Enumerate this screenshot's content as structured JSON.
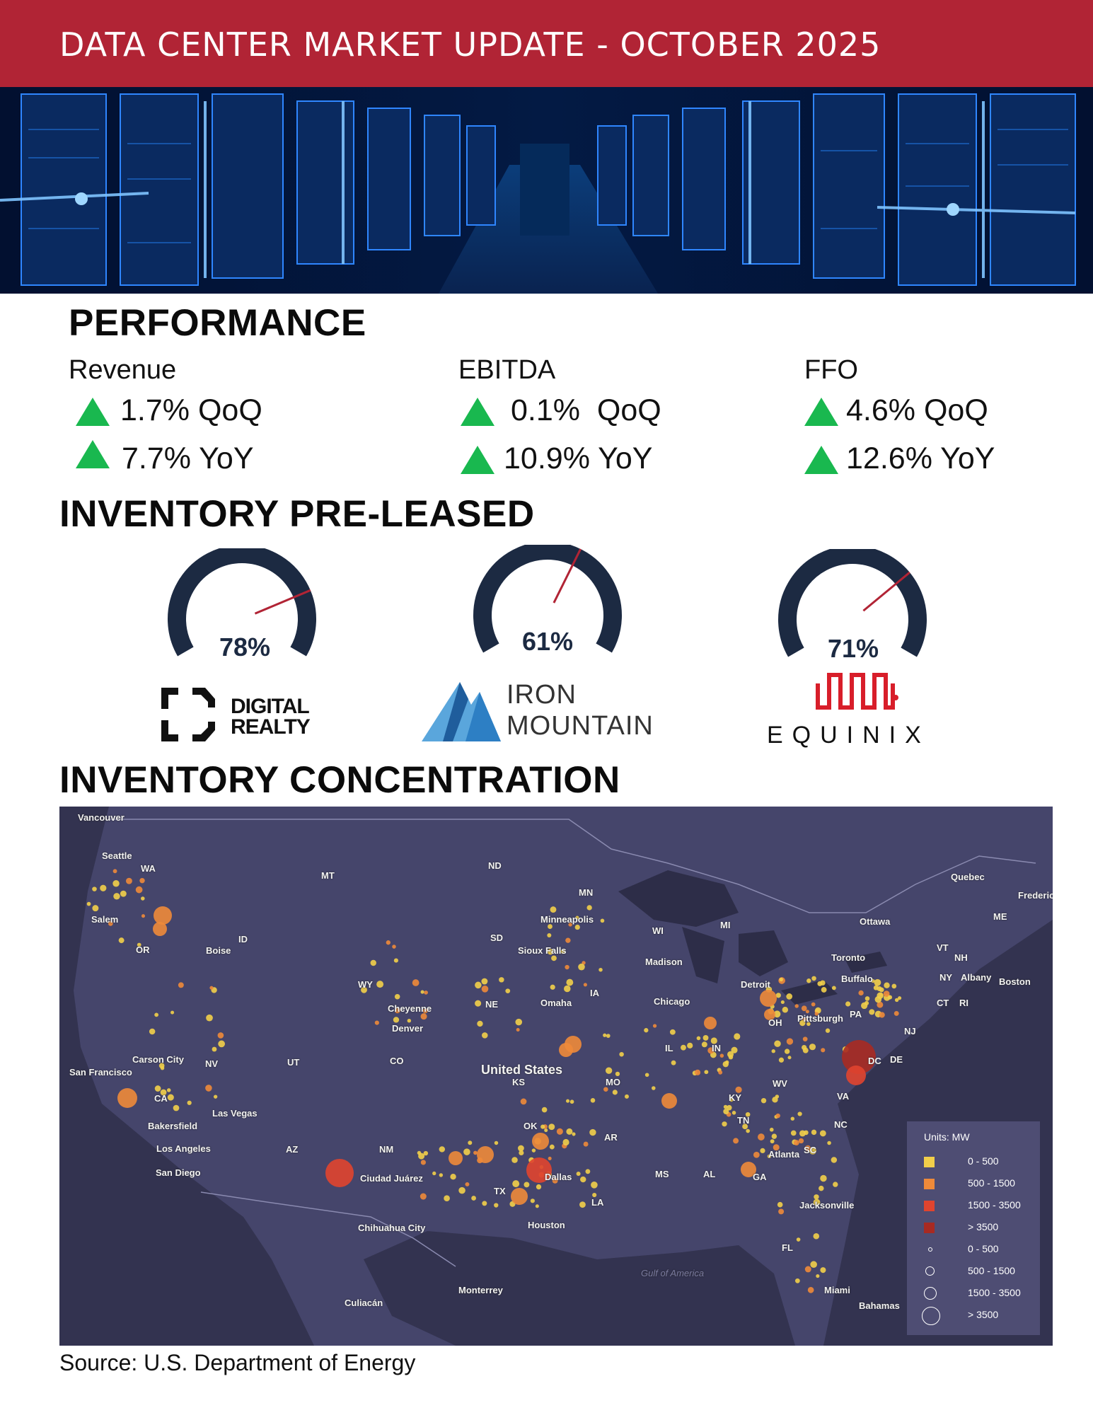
{
  "header": {
    "title": "DATA CENTER MARKET UPDATE - OCTOBER 2025"
  },
  "performance": {
    "title": "PERFORMANCE",
    "metrics": [
      {
        "name": "Revenue",
        "qoq": "1.7% QoQ",
        "yoy": "7.7% YoY"
      },
      {
        "name": "EBITDA",
        "qoq": "0.1%  QoQ",
        "yoy": "10.9% YoY"
      },
      {
        "name": "FFO",
        "qoq": "4.6% QoQ",
        "yoy": "12.6% YoY"
      }
    ],
    "up_color": "#19b84f"
  },
  "inventory_preleased": {
    "title": "INVENTORY PRE-LEASED",
    "gauges": [
      {
        "value_label": "78%",
        "value": 0.78,
        "company": "DIGITAL REALTY",
        "line1": "DIGITAL",
        "line2": "REALTY"
      },
      {
        "value_label": "61%",
        "value": 0.61,
        "company": "IRON MOUNTAIN",
        "line1": "IRON",
        "line2": "MOUNTAIN"
      },
      {
        "value_label": "71%",
        "value": 0.71,
        "company": "EQUINIX",
        "line1": "EQUINIX"
      }
    ],
    "gauge_color": "#1c2a42",
    "needle_color": "#b12435"
  },
  "inventory_concentration": {
    "title": "INVENTORY CONCENTRATION",
    "map_labels": [
      "Vancouver",
      "Seattle",
      "WA",
      "Salem",
      "OR",
      "Boise",
      "ID",
      "MT",
      "WY",
      "ND",
      "MN",
      "SD",
      "Minneapolis",
      "Sioux Falls",
      "WI",
      "MI",
      "Madison",
      "Chicago",
      "Detroit",
      "Toronto",
      "Ottawa",
      "Quebec",
      "Fredericton",
      "ME",
      "VT",
      "NH",
      "NY",
      "Albany",
      "Boston",
      "CT",
      "RI",
      "Buffalo",
      "PA",
      "Pittsburgh",
      "NJ",
      "DE",
      "DC",
      "OH",
      "IN",
      "IL",
      "IA",
      "Omaha",
      "NE",
      "Cheyenne",
      "Denver",
      "CO",
      "UT",
      "NV",
      "Carson City",
      "San Francisco",
      "CA",
      "Bakersfield",
      "Las Vegas",
      "Los Angeles",
      "San Diego",
      "AZ",
      "NM",
      "Ciudad Juárez",
      "Chihuahua City",
      "Culiacán",
      "Monterrey",
      "TX",
      "Dallas",
      "Houston",
      "OK",
      "KS",
      "MO",
      "KY",
      "WV",
      "VA",
      "NC",
      "SC",
      "TN",
      "AR",
      "MS",
      "AL",
      "GA",
      "LA",
      "Atlanta",
      "Jacksonville",
      "FL",
      "Miami",
      "Bahamas",
      "United States",
      "Gulf of America"
    ],
    "legend": {
      "title": "Units: MW",
      "color_items": [
        {
          "label": "0 - 500",
          "color": "#f2cf4a"
        },
        {
          "label": "500 - 1500",
          "color": "#ee8a3a"
        },
        {
          "label": "1500 - 3500",
          "color": "#e0442f"
        },
        {
          "label": "> 3500",
          "color": "#a82a22"
        }
      ],
      "size_items": [
        {
          "label": "0 - 500"
        },
        {
          "label": "500 - 1500"
        },
        {
          "label": "1500 - 3500"
        },
        {
          "label": "> 3500"
        }
      ]
    }
  },
  "source": "Source: U.S. Department of Energy"
}
